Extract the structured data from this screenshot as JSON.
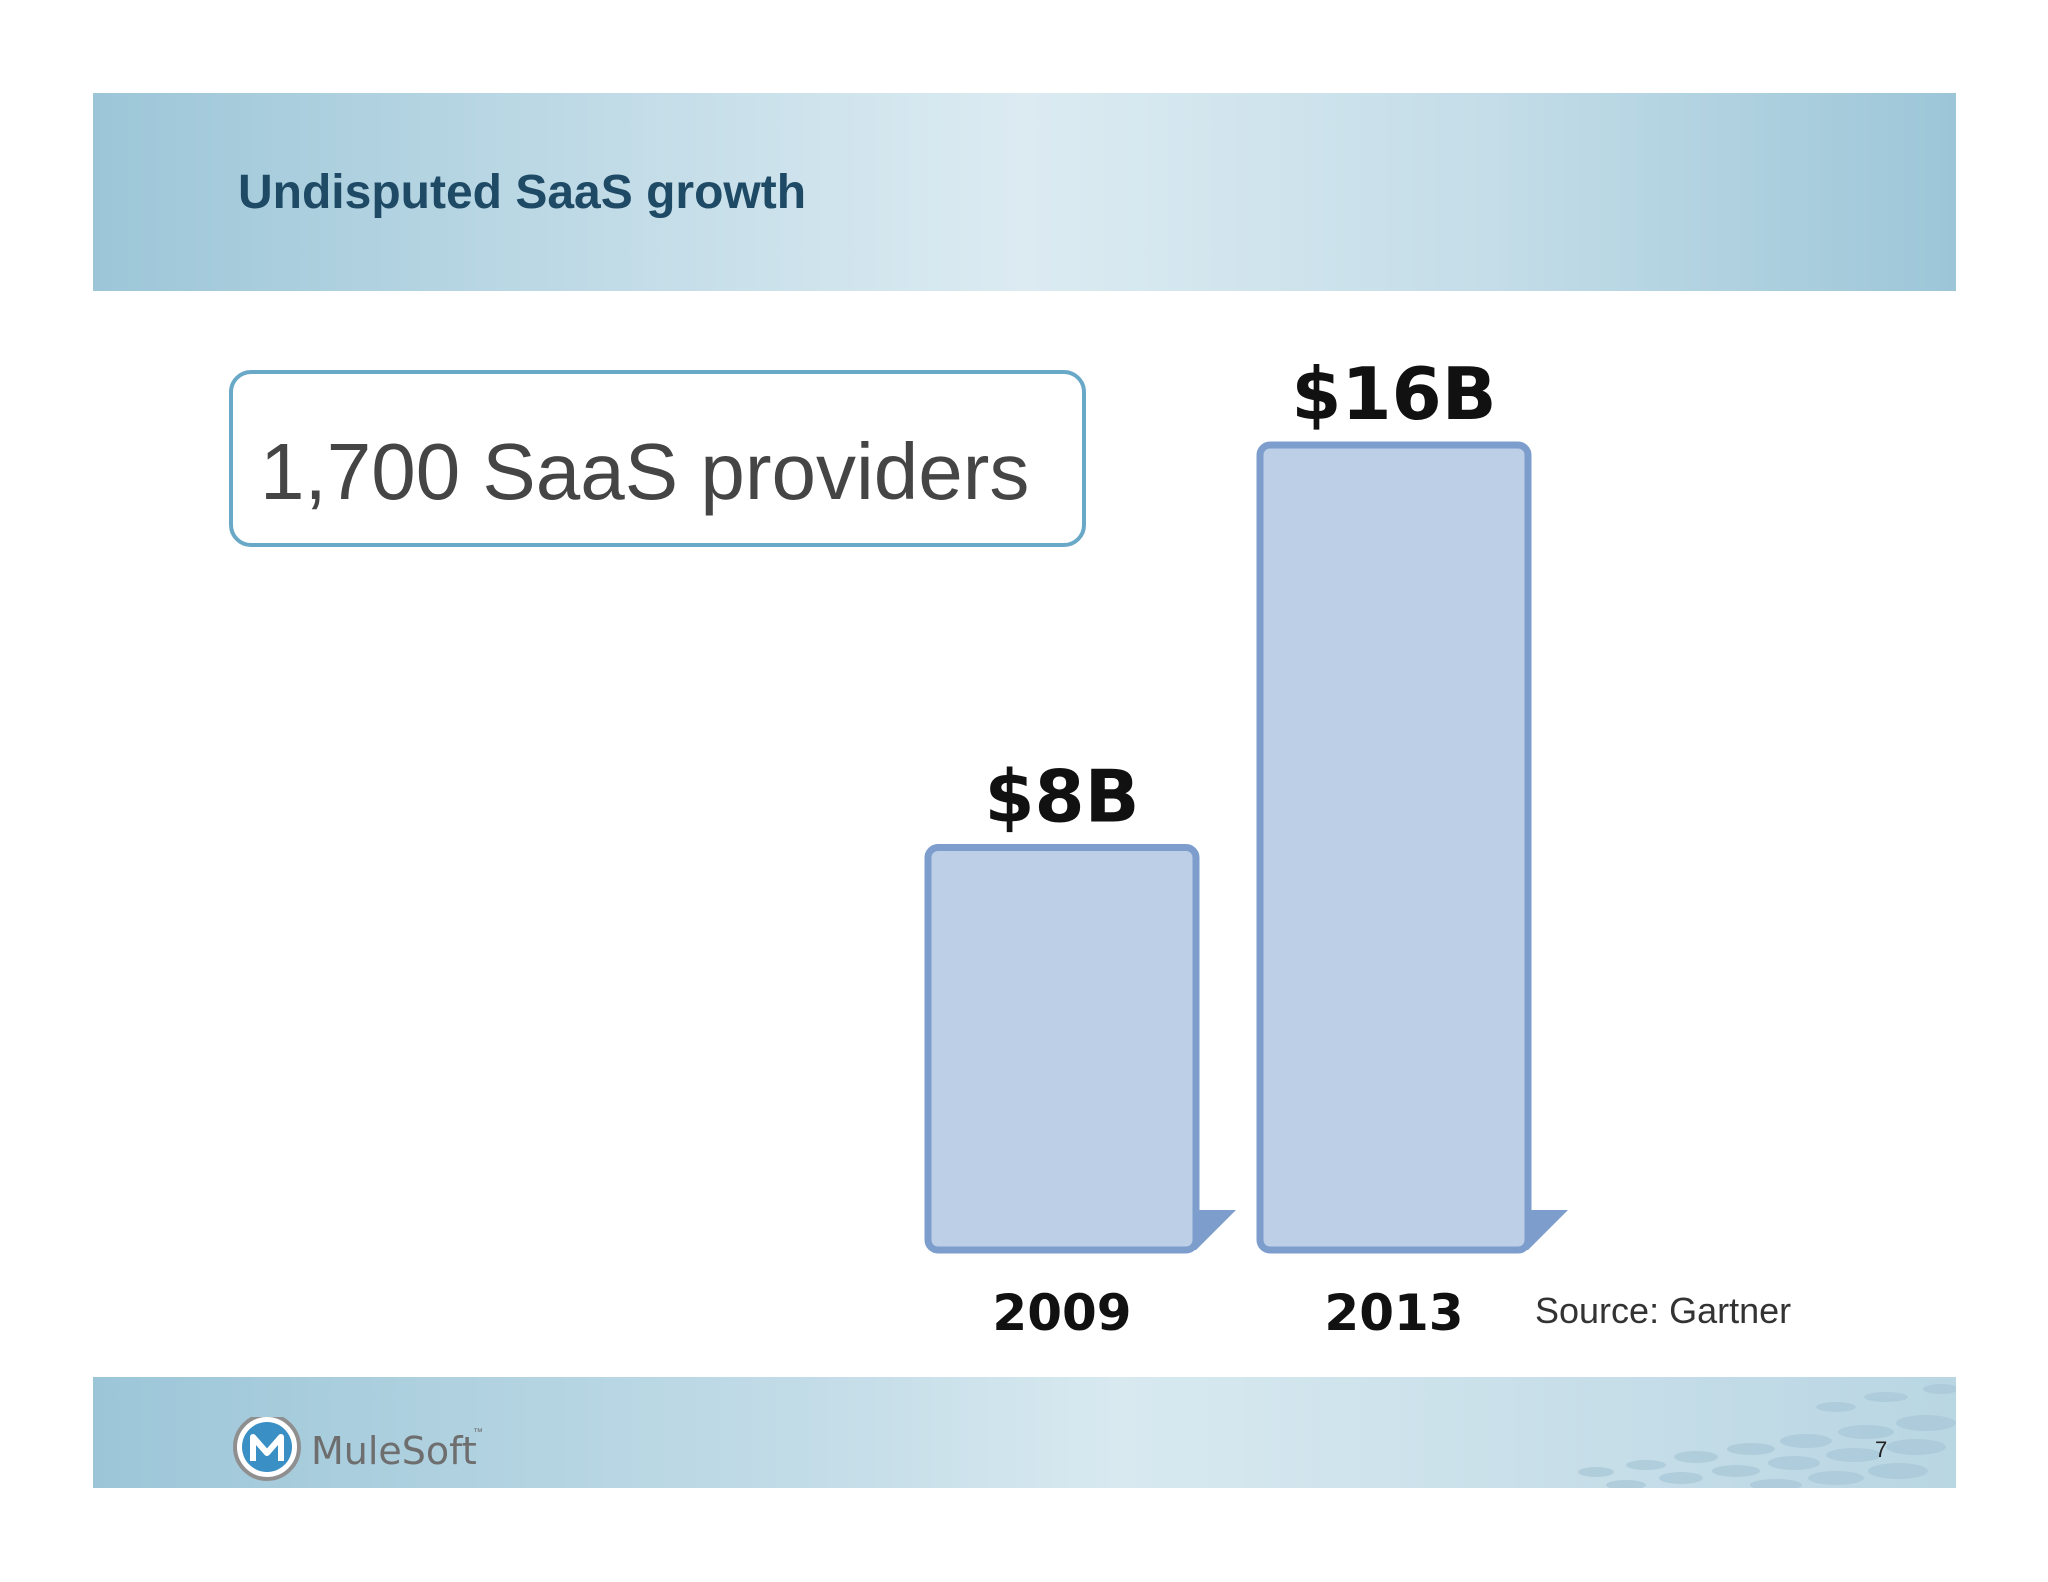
{
  "header": {
    "title": "Undisputed SaaS growth"
  },
  "callout": {
    "text": "1,700 SaaS providers"
  },
  "chart_data": {
    "type": "bar",
    "categories": [
      "2009",
      "2013"
    ],
    "values": [
      8,
      16
    ],
    "value_labels": [
      "$8B",
      "$16B"
    ],
    "title": "",
    "xlabel": "",
    "ylabel": "",
    "ylim": [
      0,
      16
    ],
    "grid": false,
    "bar_fill": "#bccfe6",
    "bar_border": "#7d9ecd"
  },
  "source": {
    "text": "Source: Gartner"
  },
  "footer": {
    "brand": "MuleSoft",
    "trademark": "™",
    "page_number": "7",
    "logo_icon": "mulesoft-logo-icon"
  },
  "colors": {
    "title": "#1f4a66",
    "band": "#9cc6d8",
    "callout_border": "#6aa8c8"
  }
}
